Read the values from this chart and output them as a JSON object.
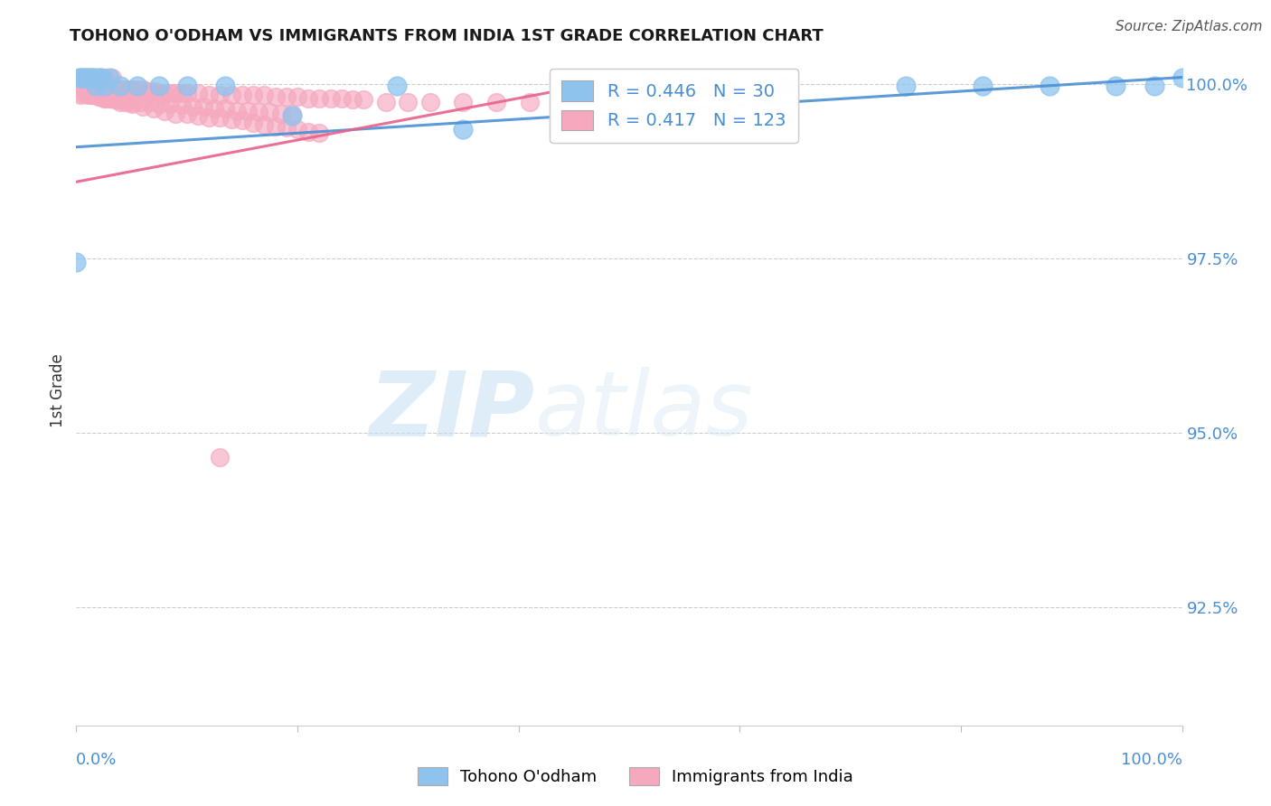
{
  "title": "TOHONO O'ODHAM VS IMMIGRANTS FROM INDIA 1ST GRADE CORRELATION CHART",
  "source_text": "Source: ZipAtlas.com",
  "ylabel": "1st Grade",
  "xlim": [
    0.0,
    1.0
  ],
  "ylim": [
    0.908,
    1.004
  ],
  "yticks": [
    0.925,
    0.95,
    0.975,
    1.0
  ],
  "ytick_labels": [
    "92.5%",
    "95.0%",
    "97.5%",
    "100.0%"
  ],
  "blue_R": 0.446,
  "blue_N": 30,
  "pink_R": 0.417,
  "pink_N": 123,
  "blue_color": "#8ec3ee",
  "pink_color": "#f5a8be",
  "blue_line_color": "#4a8fd4",
  "pink_line_color": "#e8628a",
  "legend_label_blue": "Tohono O'odham",
  "legend_label_pink": "Immigrants from India",
  "watermark_zip": "ZIP",
  "watermark_atlas": "atlas",
  "background_color": "#ffffff",
  "blue_x": [
    0.003,
    0.005,
    0.007,
    0.008,
    0.01,
    0.012,
    0.014,
    0.016,
    0.018,
    0.02,
    0.023,
    0.026,
    0.03,
    0.04,
    0.055,
    0.075,
    0.1,
    0.135,
    0.195,
    0.29,
    0.35,
    0.0,
    0.57,
    0.64,
    0.75,
    0.82,
    0.88,
    0.94,
    0.975,
    1.0
  ],
  "blue_y": [
    1.001,
    1.001,
    1.001,
    1.001,
    1.001,
    1.001,
    1.001,
    1.001,
    0.9998,
    1.001,
    1.001,
    0.9998,
    1.001,
    0.9998,
    0.9998,
    0.9998,
    0.9998,
    0.9998,
    0.9955,
    0.9998,
    0.9935,
    0.9745,
    0.9998,
    0.9998,
    0.9998,
    0.9998,
    0.9998,
    0.9998,
    0.9998,
    1.001
  ],
  "pink_x": [
    0.002,
    0.003,
    0.004,
    0.005,
    0.006,
    0.007,
    0.008,
    0.009,
    0.01,
    0.011,
    0.012,
    0.013,
    0.014,
    0.015,
    0.016,
    0.017,
    0.018,
    0.019,
    0.02,
    0.021,
    0.022,
    0.023,
    0.025,
    0.026,
    0.028,
    0.03,
    0.032,
    0.034,
    0.036,
    0.038,
    0.04,
    0.042,
    0.045,
    0.048,
    0.05,
    0.055,
    0.06,
    0.065,
    0.07,
    0.075,
    0.08,
    0.085,
    0.09,
    0.095,
    0.1,
    0.11,
    0.12,
    0.13,
    0.14,
    0.15,
    0.16,
    0.17,
    0.18,
    0.19,
    0.2,
    0.21,
    0.22,
    0.23,
    0.24,
    0.25,
    0.26,
    0.28,
    0.3,
    0.32,
    0.35,
    0.38,
    0.41,
    0.004,
    0.007,
    0.01,
    0.014,
    0.018,
    0.022,
    0.027,
    0.032,
    0.038,
    0.044,
    0.05,
    0.058,
    0.066,
    0.075,
    0.085,
    0.095,
    0.105,
    0.115,
    0.125,
    0.135,
    0.145,
    0.155,
    0.165,
    0.175,
    0.185,
    0.195,
    0.005,
    0.01,
    0.015,
    0.02,
    0.025,
    0.03,
    0.035,
    0.04,
    0.045,
    0.05,
    0.06,
    0.07,
    0.08,
    0.09,
    0.1,
    0.11,
    0.12,
    0.13,
    0.14,
    0.15,
    0.16,
    0.17,
    0.18,
    0.19,
    0.2,
    0.21,
    0.22
  ],
  "pink_y": [
    1.001,
    1.001,
    1.001,
    1.001,
    0.9995,
    1.001,
    0.9995,
    1.001,
    0.9995,
    1.001,
    1.001,
    0.9995,
    1.001,
    0.9995,
    1.001,
    1.001,
    0.9995,
    1.001,
    0.9995,
    1.001,
    0.9995,
    1.001,
    0.9995,
    1.001,
    0.9992,
    0.9992,
    1.001,
    0.9992,
    0.9992,
    0.9992,
    0.9992,
    0.9992,
    0.9992,
    0.9992,
    0.9992,
    0.9992,
    0.9992,
    0.999,
    0.999,
    0.9988,
    0.9988,
    0.9988,
    0.9988,
    0.9988,
    0.9988,
    0.9988,
    0.9985,
    0.9985,
    0.9985,
    0.9985,
    0.9985,
    0.9985,
    0.9982,
    0.9982,
    0.9982,
    0.998,
    0.998,
    0.998,
    0.998,
    0.9978,
    0.9978,
    0.9975,
    0.9975,
    0.9975,
    0.9975,
    0.9975,
    0.9975,
    0.9985,
    0.999,
    0.9988,
    0.9985,
    0.9985,
    0.9982,
    0.998,
    0.998,
    0.9978,
    0.9978,
    0.9975,
    0.9975,
    0.9975,
    0.9972,
    0.9972,
    0.997,
    0.9968,
    0.9968,
    0.9965,
    0.9965,
    0.9962,
    0.9962,
    0.996,
    0.996,
    0.9958,
    0.9958,
    0.9988,
    0.9985,
    0.9985,
    0.9982,
    0.998,
    0.998,
    0.9978,
    0.9975,
    0.9975,
    0.9972,
    0.9968,
    0.9965,
    0.9962,
    0.9958,
    0.9958,
    0.9955,
    0.9952,
    0.9952,
    0.995,
    0.9948,
    0.9945,
    0.9942,
    0.994,
    0.9938,
    0.9935,
    0.9932,
    0.993
  ],
  "pink_outlier_x": [
    0.13
  ],
  "pink_outlier_y": [
    0.9465
  ],
  "blue_line_x0": 0.0,
  "blue_line_x1": 1.0,
  "blue_line_y0": 0.991,
  "blue_line_y1": 1.001,
  "pink_line_x0": 0.0,
  "pink_line_x1": 0.45,
  "pink_line_y0": 0.986,
  "pink_line_y1": 0.9995
}
